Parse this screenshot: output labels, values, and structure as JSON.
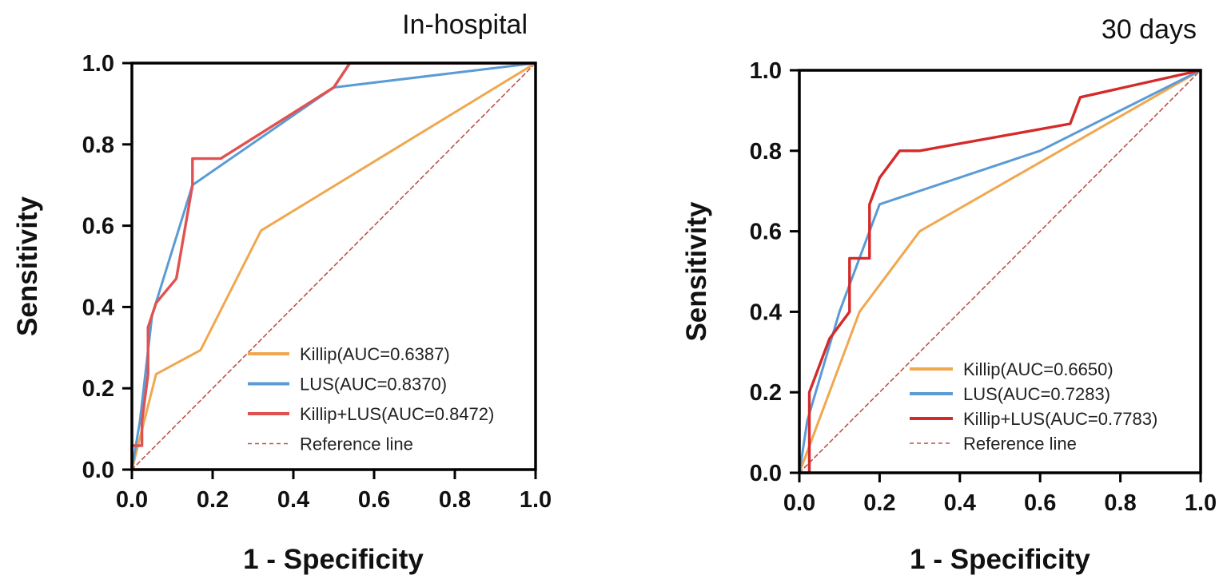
{
  "chart_data": [
    {
      "type": "line",
      "title": "In-hospital",
      "xlabel": "1 - Specificity",
      "ylabel": "Sensitivity",
      "xlim": [
        0,
        1
      ],
      "ylim": [
        0,
        1
      ],
      "xticks": [
        "0.0",
        "0.2",
        "0.4",
        "0.6",
        "0.8",
        "1.0"
      ],
      "yticks": [
        "0.0",
        "0.2",
        "0.4",
        "0.6",
        "0.8",
        "1.0"
      ],
      "legend_position": "bottom-right",
      "series": [
        {
          "name": "Killip(AUC=0.6387)",
          "color": "#F0A850",
          "style": "solid",
          "x": [
            0,
            0.06,
            0.17,
            0.32,
            1.0
          ],
          "y": [
            0,
            0.235,
            0.294,
            0.588,
            1.0
          ]
        },
        {
          "name": "LUS(AUC=0.8370)",
          "color": "#5B9BD5",
          "style": "solid",
          "x": [
            0,
            0.02,
            0.05,
            0.15,
            0.5,
            1.0
          ],
          "y": [
            0,
            0.12,
            0.38,
            0.7,
            0.94,
            1.0
          ]
        },
        {
          "name": "Killip+LUS(AUC=0.8472)",
          "color": "#E05252",
          "style": "solid",
          "x": [
            0,
            0.0,
            0.025,
            0.025,
            0.04,
            0.04,
            0.06,
            0.11,
            0.15,
            0.15,
            0.22,
            0.5,
            0.54,
            1.0
          ],
          "y": [
            0,
            0.059,
            0.059,
            0.118,
            0.235,
            0.35,
            0.41,
            0.47,
            0.7,
            0.765,
            0.765,
            0.94,
            1.0,
            1.0
          ]
        },
        {
          "name": "Reference line",
          "color": "#C0504D",
          "style": "dashed",
          "x": [
            0,
            1
          ],
          "y": [
            0,
            1
          ]
        }
      ]
    },
    {
      "type": "line",
      "title": "30 days",
      "xlabel": "1 - Specificity",
      "ylabel": "Sensitivity",
      "xlim": [
        0,
        1
      ],
      "ylim": [
        0,
        1
      ],
      "xticks": [
        "0.0",
        "0.2",
        "0.4",
        "0.6",
        "0.8",
        "1.0"
      ],
      "yticks": [
        "0.0",
        "0.2",
        "0.4",
        "0.6",
        "0.8",
        "1.0"
      ],
      "legend_position": "bottom-right",
      "series": [
        {
          "name": "Killip(AUC=0.6650)",
          "color": "#F0A850",
          "style": "solid",
          "x": [
            0,
            0.15,
            0.3,
            1.0
          ],
          "y": [
            0,
            0.4,
            0.6,
            1.0
          ]
        },
        {
          "name": "LUS(AUC=0.7283)",
          "color": "#5B9BD5",
          "style": "solid",
          "x": [
            0,
            0.02,
            0.1,
            0.2,
            0.6,
            1.0
          ],
          "y": [
            0,
            0.13,
            0.4,
            0.667,
            0.8,
            1.0
          ]
        },
        {
          "name": "Killip+LUS(AUC=0.7783)",
          "color": "#D42A2A",
          "style": "solid",
          "x": [
            0,
            0.025,
            0.025,
            0.075,
            0.125,
            0.125,
            0.175,
            0.175,
            0.2,
            0.25,
            0.3,
            0.675,
            0.7,
            1.0
          ],
          "y": [
            0,
            0,
            0.2,
            0.333,
            0.4,
            0.533,
            0.533,
            0.667,
            0.733,
            0.8,
            0.8,
            0.867,
            0.933,
            1.0
          ]
        },
        {
          "name": "Reference line",
          "color": "#C0504D",
          "style": "dashed",
          "x": [
            0,
            1
          ],
          "y": [
            0,
            1
          ]
        }
      ]
    }
  ]
}
